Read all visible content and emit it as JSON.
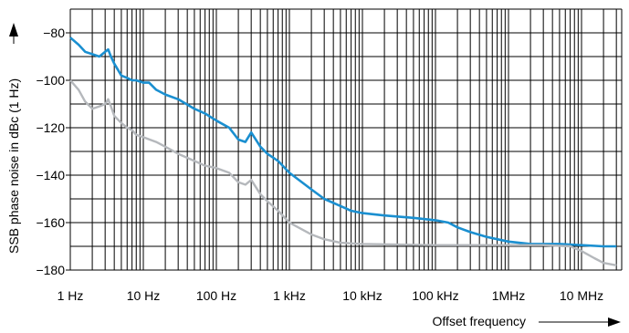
{
  "chart_data": {
    "type": "line",
    "title": "",
    "xlabel": "Offset frequency",
    "ylabel": "SSB phase noise in dBc (1 Hz)",
    "xscale": "log",
    "x_unit": "Hz",
    "xlim": [
      1,
      30000000
    ],
    "ylim": [
      -180,
      -70
    ],
    "grid": true,
    "legend": "none",
    "x_tick_labels": [
      "1 Hz",
      "10 Hz",
      "100 Hz",
      "1 kHz",
      "10 kHz",
      "100 kHz",
      "1MHz",
      "10 MHz"
    ],
    "x_tick_values": [
      1,
      10,
      100,
      1000,
      10000,
      100000,
      1000000,
      10000000
    ],
    "y_ticks": [
      -80,
      -100,
      -120,
      -140,
      -160,
      -180
    ],
    "series": [
      {
        "color": "#1a8fd0",
        "x": [
          1,
          1.3,
          1.6,
          2,
          2.5,
          3,
          3.3,
          3.6,
          4,
          5,
          6,
          7,
          8,
          10,
          12,
          15,
          20,
          30,
          50,
          70,
          100,
          150,
          200,
          250,
          300,
          400,
          500,
          700,
          1000,
          2000,
          3000,
          5000,
          7000,
          10000,
          20000,
          50000,
          100000,
          150000,
          200000,
          300000,
          500000,
          700000,
          1000000,
          2000000,
          5000000,
          10000000,
          20000000,
          30000000
        ],
        "y": [
          -82,
          -85,
          -88,
          -89,
          -90,
          -88,
          -87,
          -90,
          -93,
          -98,
          -99,
          -100,
          -100,
          -101,
          -101,
          -104,
          -106,
          -108,
          -112,
          -114,
          -117,
          -120,
          -125,
          -126,
          -122,
          -128,
          -131,
          -134,
          -139,
          -146,
          -150,
          -153,
          -155,
          -156,
          -157,
          -158,
          -159,
          -160,
          -162,
          -164,
          -166,
          -167,
          -168,
          -169,
          -169,
          -169.5,
          -170,
          -170
        ]
      },
      {
        "color": "#b5b8bc",
        "x": [
          1,
          1.3,
          1.6,
          2,
          2.5,
          3,
          3.3,
          3.6,
          4,
          5,
          6,
          7,
          8,
          10,
          15,
          20,
          30,
          50,
          70,
          100,
          150,
          200,
          250,
          300,
          400,
          500,
          700,
          1000,
          2000,
          3000,
          5000,
          10000,
          100000,
          1000000,
          3000000,
          7000000,
          10000000,
          15000000,
          20000000,
          30000000
        ],
        "y": [
          -100,
          -104,
          -109,
          -112,
          -111,
          -110,
          -108,
          -111,
          -115,
          -118,
          -120,
          -121,
          -123,
          -124,
          -126,
          -128,
          -131,
          -134,
          -136,
          -137,
          -139,
          -143,
          -144,
          -142,
          -148,
          -151,
          -155,
          -160,
          -165,
          -167,
          -168.5,
          -169,
          -169.5,
          -169.5,
          -169.5,
          -170,
          -172,
          -175,
          -177,
          -178
        ]
      }
    ]
  }
}
